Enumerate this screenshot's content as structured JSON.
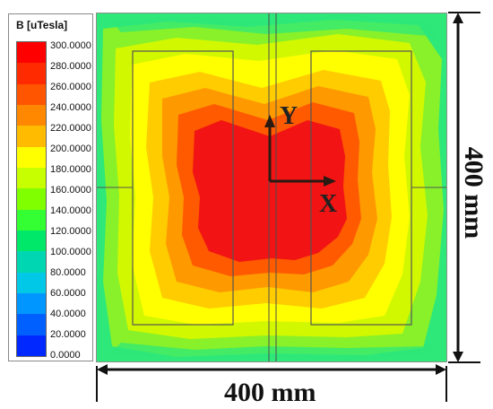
{
  "legend": {
    "title": "B [uTesla]",
    "labels": [
      "300.0000",
      "280.0000",
      "260.0000",
      "240.0000",
      "220.0000",
      "200.0000",
      "180.0000",
      "160.0000",
      "140.0000",
      "120.0000",
      "100.0000",
      "80.0000",
      "60.0000",
      "40.0000",
      "20.0000",
      "0.0000"
    ],
    "colors": [
      "#ff0000",
      "#ff2a00",
      "#ff5500",
      "#ff8800",
      "#ffbb00",
      "#ffff00",
      "#c8ff00",
      "#7fff00",
      "#33ff33",
      "#00e86a",
      "#00d7b2",
      "#00c8e6",
      "#0096ff",
      "#0060ff",
      "#0028ff",
      "#0000ff"
    ]
  },
  "dimensions": {
    "bottom": "400 mm",
    "right": "400 mm"
  },
  "axes": {
    "y": "Y",
    "x": "X"
  }
}
